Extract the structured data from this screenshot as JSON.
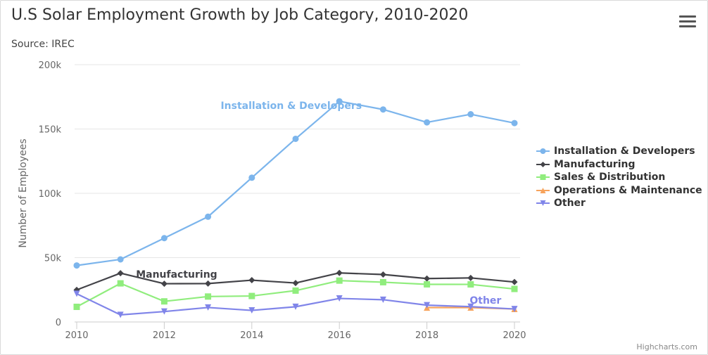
{
  "title": "U.S Solar Employment Growth by Job Category, 2010-2020",
  "subtitle": "Source: IREC",
  "credits": "Highcharts.com",
  "icons": {
    "menu": "hamburger-menu-icon"
  },
  "chart_data": {
    "type": "line",
    "title": "U.S Solar Employment Growth by Job Category, 2010-2020",
    "subtitle": "Source: IREC",
    "ylabel": "Number of Employees",
    "xlabel": "",
    "x": [
      2010,
      2011,
      2012,
      2013,
      2014,
      2015,
      2016,
      2017,
      2018,
      2019,
      2020
    ],
    "xticks": [
      "2010",
      "2012",
      "2014",
      "2016",
      "2018",
      "2020"
    ],
    "ylim": [
      0,
      200000
    ],
    "yticks": [
      "0",
      "50k",
      "100k",
      "150k",
      "200k"
    ],
    "grid": true,
    "legend_position": "right",
    "series": [
      {
        "name": "Installation & Developers",
        "color": "#7cb5ec",
        "marker": "circle",
        "values": [
          43934,
          48656,
          65165,
          81827,
          112143,
          142383,
          171533,
          165174,
          155157,
          161454,
          154610
        ]
      },
      {
        "name": "Manufacturing",
        "color": "#434348",
        "marker": "diamond",
        "values": [
          24916,
          37941,
          29742,
          29851,
          32490,
          30282,
          38121,
          36885,
          33726,
          34243,
          31050
        ]
      },
      {
        "name": "Sales & Distribution",
        "color": "#90ed7d",
        "marker": "square",
        "values": [
          11744,
          30000,
          16005,
          19771,
          20185,
          24377,
          32147,
          30912,
          29243,
          29213,
          25663
        ]
      },
      {
        "name": "Operations & Maintenance",
        "color": "#f7a35c",
        "marker": "triangle",
        "values": [
          null,
          null,
          null,
          null,
          null,
          null,
          null,
          null,
          11164,
          11218,
          10077
        ]
      },
      {
        "name": "Other",
        "color": "#8085e9",
        "marker": "triangle-down",
        "values": [
          21908,
          5548,
          8105,
          11248,
          8989,
          11816,
          18274,
          17300,
          13053,
          11906,
          10073
        ]
      }
    ],
    "annotations": [
      {
        "text": "Installation & Developers",
        "series": 0,
        "color": "#7cb5ec"
      },
      {
        "text": "Manufacturing",
        "series": 1,
        "color": "#434348"
      },
      {
        "text": "Other",
        "series": 4,
        "color": "#8085e9"
      }
    ]
  }
}
